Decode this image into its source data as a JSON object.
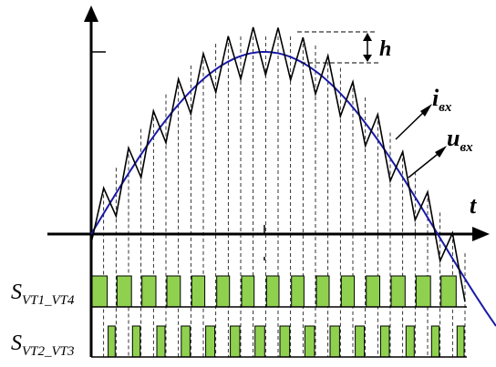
{
  "labels": {
    "h": "h",
    "t": "t",
    "i_main": "i",
    "i_sub": "вх",
    "u_main": "u",
    "u_sub": "вх",
    "s1_main": "S",
    "s1_sub": "VT1_VT4",
    "s2_main": "S",
    "s2_sub": "VT2_VT3"
  },
  "colors": {
    "axis": "#000000",
    "current": "#000000",
    "voltage": "#1a1aa8",
    "pulse_fill": "#8fd14f",
    "pulse_stroke": "#000000",
    "dashed": "#000000"
  },
  "waveform": {
    "pwm_cycles": 15,
    "ripple_amplitude_relative": 0.14
  }
}
